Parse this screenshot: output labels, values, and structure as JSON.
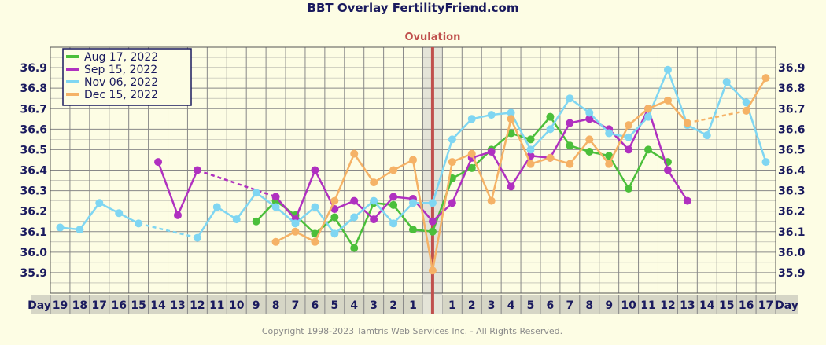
{
  "chart_data": {
    "type": "line",
    "title": "BBT Overlay FertilityFriend.com",
    "ovulation_label": "Ovulation",
    "axis_word": "Day",
    "copyright": "Copyright 1998-2023 Tamtris Web Services Inc. - All Rights Reserved.",
    "ylim": [
      35.8,
      37.0
    ],
    "yticks": [
      "35.9",
      "36.0",
      "36.1",
      "36.2",
      "36.3",
      "36.4",
      "36.5",
      "36.6",
      "36.7",
      "36.8",
      "36.9"
    ],
    "categories": [
      "19",
      "18",
      "17",
      "16",
      "15",
      "14",
      "13",
      "12",
      "11",
      "10",
      "9",
      "8",
      "7",
      "6",
      "5",
      "4",
      "3",
      "2",
      "1",
      "",
      "1",
      "2",
      "3",
      "4",
      "5",
      "6",
      "7",
      "8",
      "9",
      "10",
      "11",
      "12",
      "13",
      "14",
      "15",
      "16",
      "17"
    ],
    "ovulation_index": 19,
    "grid": true,
    "legend_position": "top-left",
    "colors": {
      "background": "#fdfde4",
      "grid": "#888888",
      "axis_band": "#d6d6c6",
      "ovulation_line": "#c0504d",
      "ovulation_fill": "#e4e4d8",
      "text": "#1a1a5e"
    },
    "series": [
      {
        "name": "Aug 17, 2022",
        "color": "#4bbf3a",
        "values": [
          null,
          null,
          null,
          null,
          null,
          null,
          null,
          null,
          null,
          null,
          36.15,
          36.25,
          36.18,
          36.09,
          36.17,
          36.02,
          36.24,
          36.23,
          36.11,
          36.1,
          36.36,
          36.41,
          36.5,
          36.58,
          36.55,
          36.66,
          36.52,
          36.49,
          36.47,
          36.31,
          36.5,
          36.44,
          null,
          null,
          null,
          null,
          null
        ],
        "dashed_gaps": []
      },
      {
        "name": "Sep 15, 2022",
        "color": "#b030c0",
        "values": [
          null,
          null,
          null,
          null,
          null,
          36.44,
          36.18,
          36.4,
          null,
          null,
          null,
          36.27,
          36.16,
          36.4,
          36.21,
          36.25,
          36.16,
          36.27,
          36.26,
          36.15,
          36.24,
          36.46,
          36.49,
          36.32,
          36.47,
          36.46,
          36.63,
          36.65,
          36.6,
          36.5,
          36.7,
          36.4,
          36.25,
          null,
          null,
          null,
          null
        ],
        "dashed_gaps": [
          [
            7,
            11
          ]
        ]
      },
      {
        "name": "Nov 06, 2022",
        "color": "#7fd6f2",
        "values": [
          36.12,
          36.11,
          36.24,
          36.19,
          36.14,
          null,
          null,
          36.07,
          36.22,
          36.16,
          36.29,
          36.22,
          36.14,
          36.22,
          36.09,
          36.17,
          36.25,
          36.14,
          36.24,
          36.24,
          36.55,
          36.65,
          36.67,
          36.68,
          36.5,
          36.6,
          36.75,
          36.68,
          36.58,
          36.56,
          36.66,
          36.89,
          36.62,
          36.57,
          36.83,
          36.73,
          36.44
        ],
        "dashed_gaps": [
          [
            4,
            7
          ]
        ]
      },
      {
        "name": "Dec 15, 2022",
        "color": "#f5b266",
        "values": [
          null,
          null,
          null,
          null,
          null,
          null,
          null,
          null,
          null,
          null,
          null,
          36.05,
          36.1,
          36.05,
          36.25,
          36.48,
          36.34,
          36.4,
          36.45,
          35.91,
          36.44,
          36.48,
          36.25,
          36.65,
          36.43,
          36.46,
          36.43,
          36.55,
          36.43,
          36.62,
          36.7,
          36.74,
          36.63,
          null,
          null,
          36.69,
          36.85
        ],
        "dashed_gaps": [
          [
            32,
            35
          ]
        ]
      }
    ]
  }
}
